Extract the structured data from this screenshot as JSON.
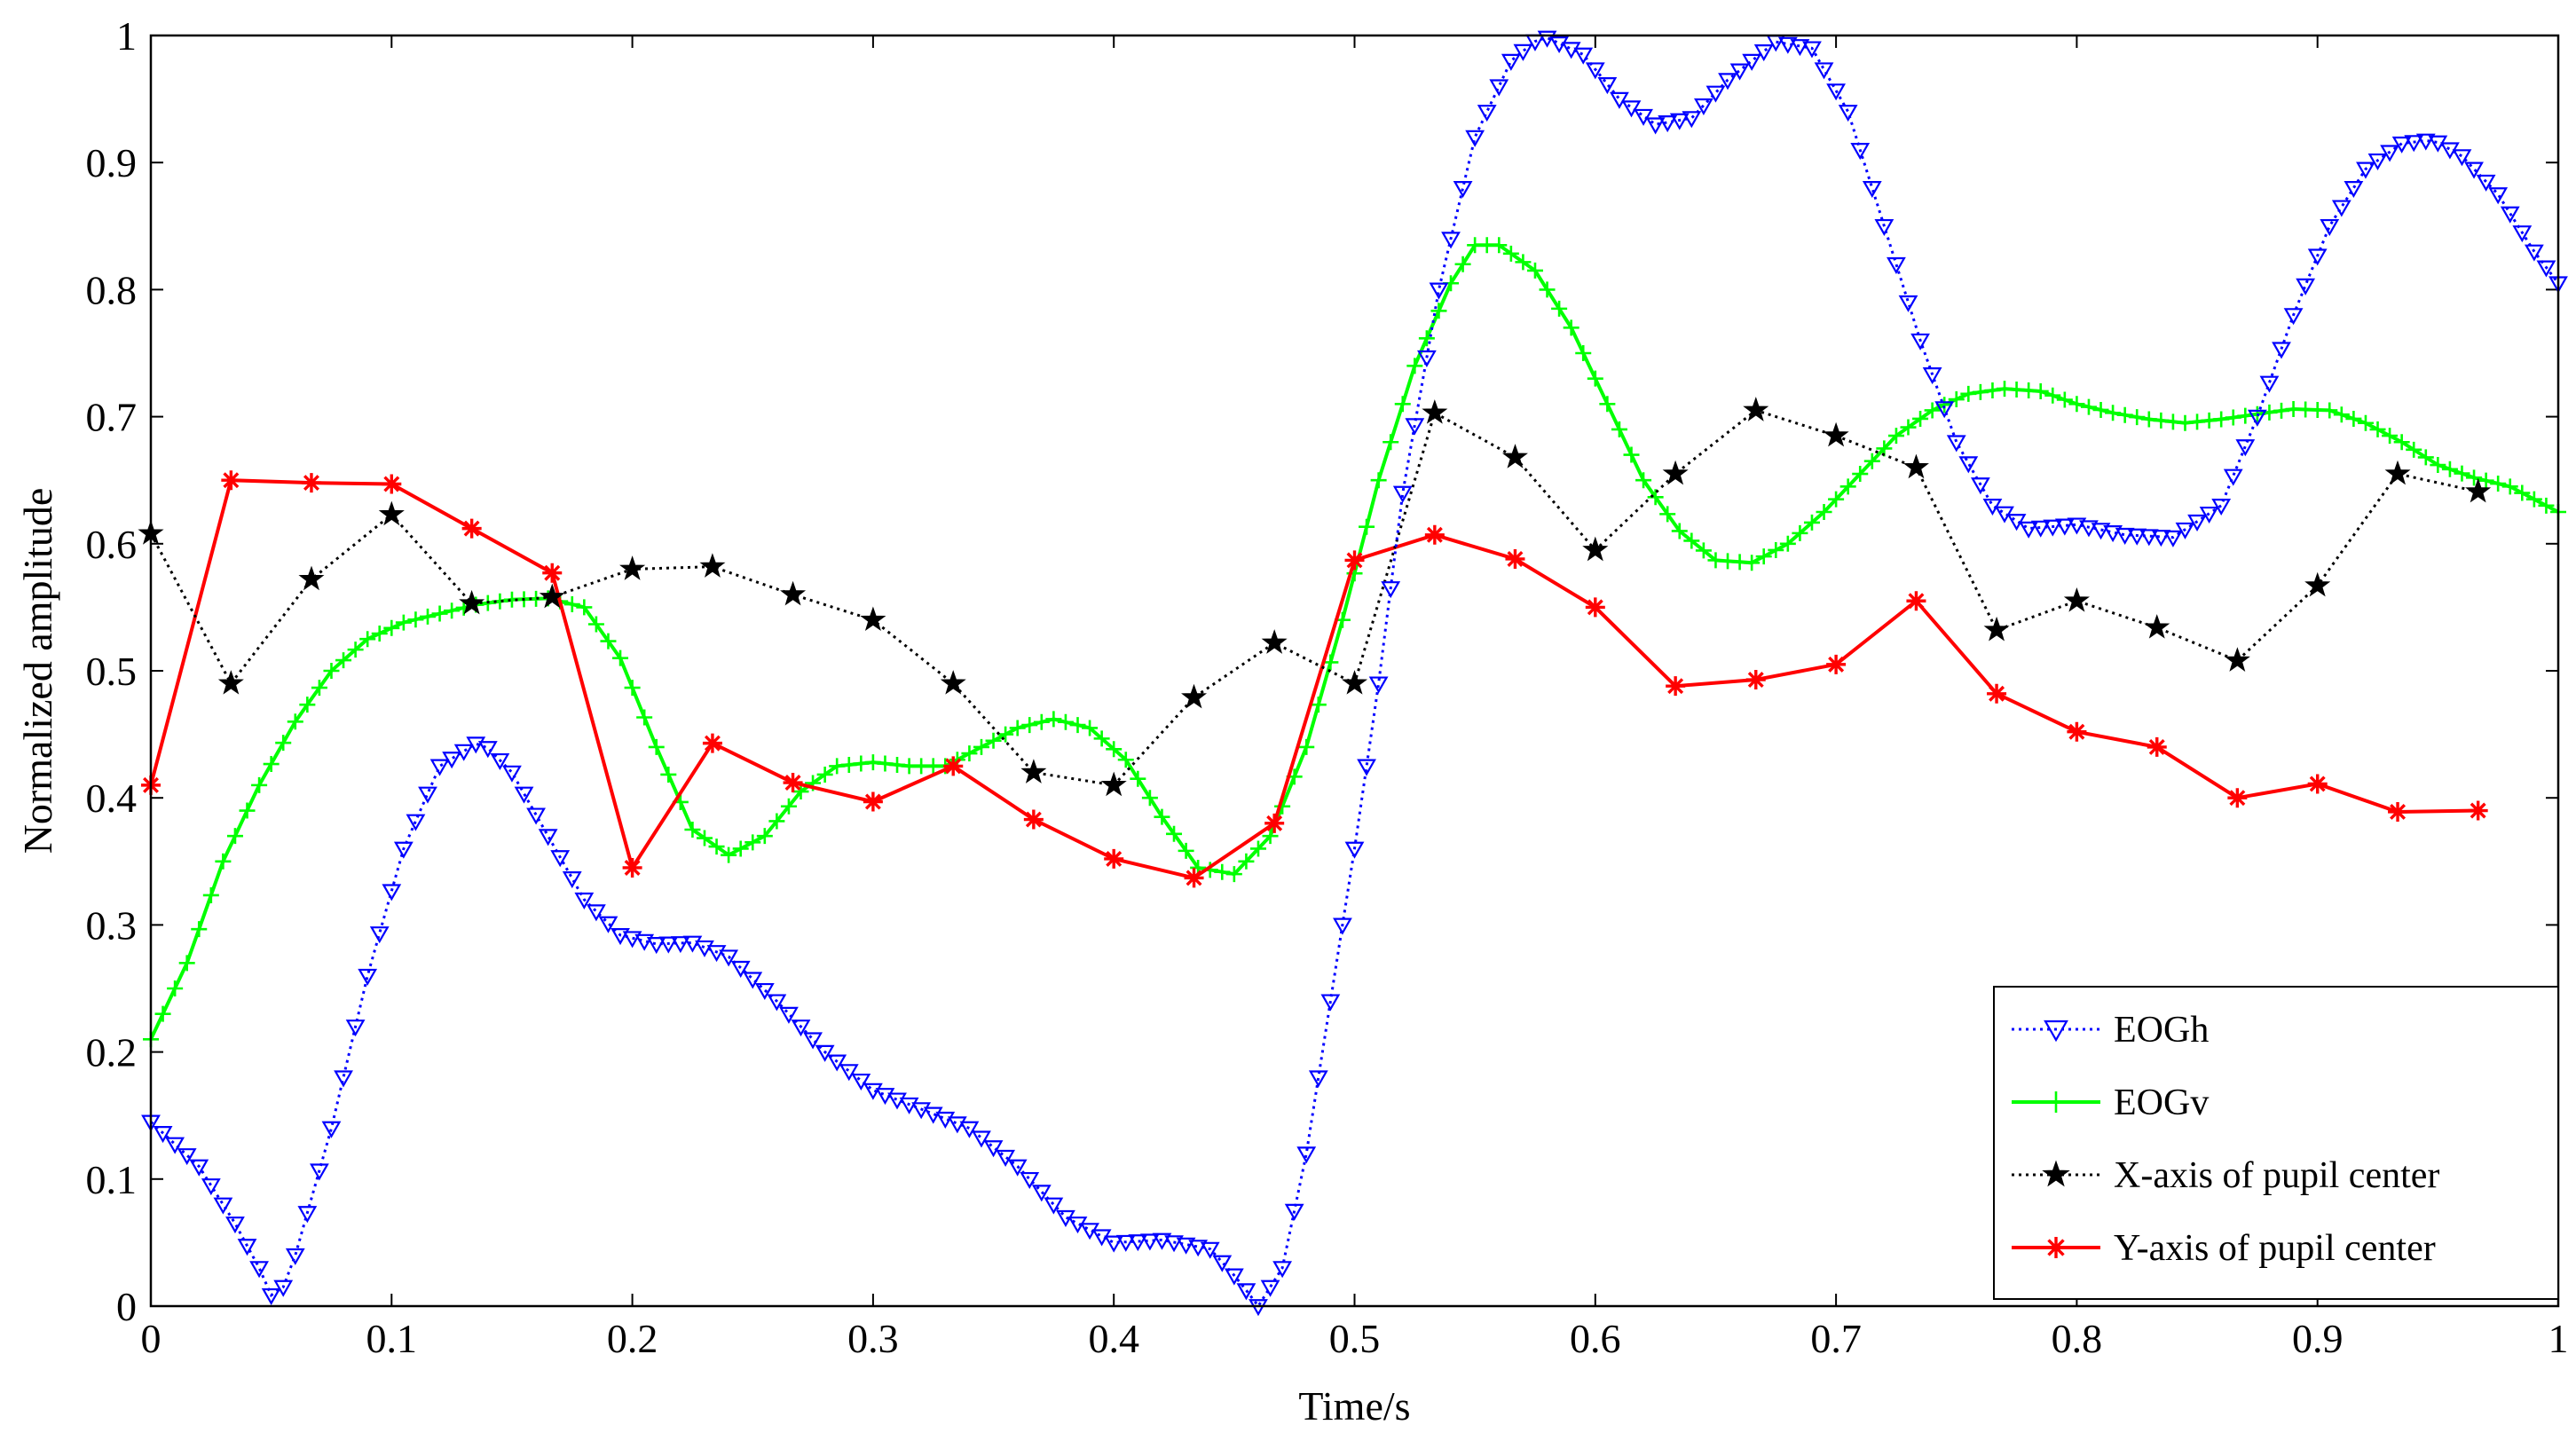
{
  "chart_data": {
    "type": "line",
    "title": "",
    "xlabel": "Time/s",
    "ylabel": "Normalized amplitude",
    "xlim": [
      0,
      1
    ],
    "ylim": [
      0,
      1
    ],
    "x_ticks": [
      "0",
      "0.1",
      "0.2",
      "0.3",
      "0.4",
      "0.5",
      "0.6",
      "0.7",
      "0.8",
      "0.9",
      "1"
    ],
    "y_ticks": [
      "0",
      "0.1",
      "0.2",
      "0.3",
      "0.4",
      "0.5",
      "0.6",
      "0.7",
      "0.8",
      "0.9",
      "1"
    ],
    "legend_position": "bottom-right",
    "series": [
      {
        "name": "EOGh",
        "color": "#0000ff",
        "line_style": "dotted",
        "marker": "triangle-down",
        "dense": true,
        "x": [
          0,
          0.02,
          0.035,
          0.045,
          0.052,
          0.06,
          0.075,
          0.09,
          0.105,
          0.12,
          0.137,
          0.15,
          0.165,
          0.18,
          0.195,
          0.21,
          0.225,
          0.24,
          0.26,
          0.28,
          0.3,
          0.32,
          0.34,
          0.36,
          0.38,
          0.4,
          0.42,
          0.44,
          0.452,
          0.46,
          0.47,
          0.48,
          0.49,
          0.5,
          0.51,
          0.52,
          0.535,
          0.55,
          0.565,
          0.578,
          0.595,
          0.61,
          0.625,
          0.64,
          0.655,
          0.675,
          0.69,
          0.705,
          0.72,
          0.735,
          0.75,
          0.765,
          0.78,
          0.8,
          0.82,
          0.84,
          0.86,
          0.875,
          0.89,
          0.905,
          0.92,
          0.935,
          0.948,
          0.96,
          0.975,
          0.99,
          1.0
        ],
        "values": [
          0.145,
          0.11,
          0.065,
          0.03,
          0.0,
          0.04,
          0.14,
          0.26,
          0.36,
          0.425,
          0.445,
          0.42,
          0.37,
          0.32,
          0.292,
          0.285,
          0.286,
          0.275,
          0.24,
          0.2,
          0.17,
          0.155,
          0.14,
          0.11,
          0.07,
          0.05,
          0.052,
          0.045,
          0.02,
          0.0,
          0.03,
          0.12,
          0.24,
          0.36,
          0.49,
          0.64,
          0.8,
          0.92,
          0.98,
          1.0,
          0.985,
          0.95,
          0.93,
          0.935,
          0.965,
          0.995,
          0.99,
          0.94,
          0.85,
          0.76,
          0.68,
          0.63,
          0.612,
          0.615,
          0.607,
          0.605,
          0.63,
          0.7,
          0.78,
          0.85,
          0.895,
          0.915,
          0.918,
          0.905,
          0.875,
          0.83,
          0.805
        ]
      },
      {
        "name": "EOGv",
        "color": "#00ff00",
        "line_style": "solid",
        "marker": "plus",
        "dense": true,
        "x": [
          0,
          0.015,
          0.03,
          0.045,
          0.06,
          0.075,
          0.09,
          0.105,
          0.12,
          0.135,
          0.15,
          0.165,
          0.18,
          0.195,
          0.21,
          0.225,
          0.24,
          0.255,
          0.27,
          0.285,
          0.3,
          0.315,
          0.33,
          0.345,
          0.36,
          0.375,
          0.39,
          0.405,
          0.42,
          0.435,
          0.45,
          0.465,
          0.48,
          0.495,
          0.51,
          0.525,
          0.54,
          0.55,
          0.56,
          0.575,
          0.59,
          0.605,
          0.62,
          0.635,
          0.65,
          0.665,
          0.68,
          0.695,
          0.71,
          0.725,
          0.74,
          0.755,
          0.77,
          0.785,
          0.8,
          0.815,
          0.83,
          0.845,
          0.86,
          0.875,
          0.89,
          0.905,
          0.92,
          0.935,
          0.95,
          0.965,
          0.98,
          1.0
        ],
        "values": [
          0.21,
          0.27,
          0.35,
          0.41,
          0.46,
          0.5,
          0.525,
          0.538,
          0.545,
          0.552,
          0.556,
          0.557,
          0.55,
          0.51,
          0.44,
          0.375,
          0.355,
          0.37,
          0.405,
          0.425,
          0.428,
          0.425,
          0.425,
          0.44,
          0.455,
          0.462,
          0.455,
          0.43,
          0.385,
          0.345,
          0.34,
          0.37,
          0.44,
          0.54,
          0.65,
          0.74,
          0.805,
          0.835,
          0.835,
          0.815,
          0.77,
          0.71,
          0.65,
          0.61,
          0.587,
          0.585,
          0.6,
          0.625,
          0.655,
          0.685,
          0.705,
          0.718,
          0.722,
          0.72,
          0.71,
          0.703,
          0.698,
          0.695,
          0.698,
          0.702,
          0.706,
          0.705,
          0.695,
          0.68,
          0.662,
          0.652,
          0.645,
          0.625
        ]
      },
      {
        "name": "X-axis of pupil center",
        "color": "#000000",
        "line_style": "dotted",
        "marker": "star",
        "dense": false,
        "x": [
          0,
          0.0333,
          0.0667,
          0.1,
          0.1333,
          0.1667,
          0.2,
          0.2333,
          0.2667,
          0.3,
          0.3333,
          0.3667,
          0.4,
          0.4333,
          0.4667,
          0.5,
          0.5333,
          0.5667,
          0.6,
          0.6333,
          0.6667,
          0.7,
          0.7333,
          0.7667,
          0.8,
          0.8333,
          0.8667,
          0.9,
          0.9333,
          0.9667
        ],
        "values": [
          0.608,
          0.49,
          0.572,
          0.623,
          0.553,
          0.558,
          0.58,
          0.582,
          0.56,
          0.54,
          0.49,
          0.42,
          0.41,
          0.479,
          0.522,
          0.49,
          0.703,
          0.668,
          0.595,
          0.655,
          0.705,
          0.685,
          0.66,
          0.532,
          0.555,
          0.534,
          0.508,
          0.567,
          0.655,
          0.641
        ]
      },
      {
        "name": "Y-axis of pupil center",
        "color": "#ff0000",
        "line_style": "solid",
        "marker": "asterisk",
        "dense": false,
        "x": [
          0,
          0.0333,
          0.0667,
          0.1,
          0.1333,
          0.1667,
          0.2,
          0.2333,
          0.2667,
          0.3,
          0.3333,
          0.3667,
          0.4,
          0.4333,
          0.4667,
          0.5,
          0.5333,
          0.5667,
          0.6,
          0.6333,
          0.6667,
          0.7,
          0.7333,
          0.7667,
          0.8,
          0.8333,
          0.8667,
          0.9,
          0.9333,
          0.9667
        ],
        "values": [
          0.41,
          0.65,
          0.648,
          0.647,
          0.612,
          0.577,
          0.345,
          0.443,
          0.412,
          0.397,
          0.425,
          0.383,
          0.352,
          0.337,
          0.38,
          0.587,
          0.607,
          0.588,
          0.55,
          0.488,
          0.493,
          0.505,
          0.555,
          0.482,
          0.452,
          0.44,
          0.4,
          0.411,
          0.389,
          0.39
        ]
      }
    ]
  }
}
